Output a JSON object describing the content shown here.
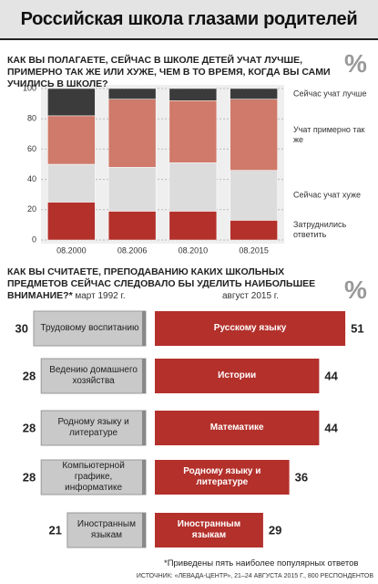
{
  "title": "Российская школа глазами родителей",
  "unit": "%",
  "footnote": "*Приведены пять наиболее популярных ответов",
  "source": "ИСТОЧНИК: «ЛЕВАДА-ЦЕНТР», 21–24 АВГУСТА 2015 Г., 800 РЕСПОНДЕНТОВ",
  "chart_data": [
    {
      "type": "stacked-bar",
      "title": "КАК ВЫ ПОЛАГАЕТЕ, СЕЙЧАС В ШКОЛЕ ДЕТЕЙ УЧАТ ЛУЧШЕ, ПРИМЕРНО ТАК ЖЕ ИЛИ ХУЖЕ, ЧЕМ В ТО ВРЕМЯ, КОГДА ВЫ САМИ УЧИЛИСЬ В ШКОЛЕ?",
      "categories": [
        "08.2000",
        "08.2006",
        "08.2010",
        "08.2015"
      ],
      "series": [
        {
          "name": "Затруднились ответить",
          "color": "#b3302b",
          "values": [
            25,
            19,
            19,
            13
          ]
        },
        {
          "name": "Сейчас учат хуже",
          "color": "#dcdcdc",
          "values": [
            25,
            29,
            32,
            33
          ]
        },
        {
          "name": "Учат примерно так же",
          "color": "#cf7a6a",
          "values": [
            32,
            45,
            41,
            47
          ]
        },
        {
          "name": "Сейчас учат лучше",
          "color": "#3b3b3b",
          "values": [
            18,
            7,
            8,
            7
          ]
        }
      ],
      "ylim": [
        0,
        100
      ],
      "yticks": [
        0,
        20,
        40,
        60,
        80,
        100
      ],
      "grid": true
    },
    {
      "type": "mirrored-bar",
      "title": "КАК ВЫ СЧИТАЕТЕ, ПРЕПОДАВАНИЮ КАКИХ ШКОЛЬНЫХ ПРЕДМЕТОВ СЕЙЧАС СЛЕДОВАЛО БЫ УДЕЛИТЬ НАИБОЛЬШЕЕ ВНИМАНИЕ?*",
      "series": [
        {
          "name": "март 1992 г.",
          "color": "#c9c9c9",
          "labels": [
            "Трудовому воспитанию",
            "Ведению домашнего хозяйства",
            "Родному языку и литературе",
            "Компьютерной графике, информатике",
            "Иностранным языкам"
          ],
          "values": [
            30,
            28,
            28,
            28,
            21
          ]
        },
        {
          "name": "август 2015 г.",
          "color": "#b3302b",
          "labels": [
            "Русскому языку",
            "Истории",
            "Математике",
            "Родному языку и литературе",
            "Иностранным языкам"
          ],
          "values": [
            51,
            44,
            44,
            36,
            29
          ]
        }
      ],
      "xlim": [
        0,
        60
      ]
    }
  ]
}
